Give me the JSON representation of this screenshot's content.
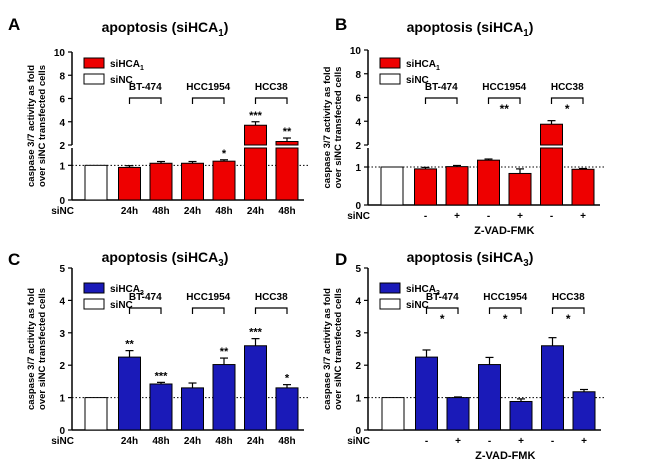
{
  "colors": {
    "red": "#ee0000",
    "blue": "#1a1ab8",
    "white": "#ffffff",
    "black": "#000000"
  },
  "chart_data": [
    {
      "type": "bar",
      "panel_letter": "A",
      "title": "apoptosis (siHCA",
      "title_sub": "1",
      "title_end": ")",
      "ylabel": [
        "caspase 3/7 activity as fold",
        "over siNC transfected cells"
      ],
      "broken_axis": true,
      "ylim_lower": [
        0,
        1.5
      ],
      "ylim_upper": [
        2,
        10
      ],
      "yticks_lower": [
        "0",
        "1"
      ],
      "yticks_upper": [
        "2",
        "4",
        "6",
        "8",
        "10"
      ],
      "legend": [
        {
          "label": "siHCA",
          "sub": "1",
          "color": "red"
        },
        {
          "label": "siNC",
          "sub": "",
          "color": "white"
        }
      ],
      "x_labels": [
        "siNC",
        "24h",
        "48h",
        "24h",
        "48h",
        "24h",
        "48h"
      ],
      "x_group_label": "",
      "bars": [
        {
          "value": 1.0,
          "error": 0,
          "color": "white",
          "star": ""
        },
        {
          "value": 0.94,
          "error": 0.05,
          "color": "red",
          "star": ""
        },
        {
          "value": 1.06,
          "error": 0.05,
          "color": "red",
          "star": ""
        },
        {
          "value": 1.06,
          "error": 0.05,
          "color": "red",
          "star": ""
        },
        {
          "value": 1.12,
          "error": 0.04,
          "color": "red",
          "star": "*"
        },
        {
          "value": 3.7,
          "error": 0.3,
          "color": "red",
          "star": "***"
        },
        {
          "value": 2.3,
          "error": 0.3,
          "color": "red",
          "star": "**"
        }
      ],
      "groups": [
        {
          "label": "BT-474",
          "bars": [
            1,
            2
          ],
          "star": ""
        },
        {
          "label": "HCC1954",
          "bars": [
            3,
            4
          ],
          "star": ""
        },
        {
          "label": "HCC38",
          "bars": [
            5,
            6
          ],
          "star": ""
        }
      ]
    },
    {
      "type": "bar",
      "panel_letter": "B",
      "title": "apoptosis (siHCA",
      "title_sub": "1",
      "title_end": ")",
      "ylabel": [
        "caspase 3/7 activity as fold",
        "over siNC transfected cells"
      ],
      "broken_axis": true,
      "ylim_lower": [
        0,
        1.5
      ],
      "ylim_upper": [
        2,
        10
      ],
      "yticks_lower": [
        "0",
        "1"
      ],
      "yticks_upper": [
        "2",
        "4",
        "6",
        "8",
        "10"
      ],
      "legend": [
        {
          "label": "siHCA",
          "sub": "1",
          "color": "red"
        },
        {
          "label": "siNC",
          "sub": "",
          "color": "white"
        }
      ],
      "x_labels": [
        "siNC",
        "-",
        "+",
        "-",
        "+",
        "-",
        "+"
      ],
      "x_group_label": "Z-VAD-FMK",
      "bars": [
        {
          "value": 1.0,
          "error": 0,
          "color": "white",
          "star": ""
        },
        {
          "value": 0.95,
          "error": 0.04,
          "color": "red",
          "star": ""
        },
        {
          "value": 1.01,
          "error": 0.03,
          "color": "red",
          "star": ""
        },
        {
          "value": 1.18,
          "error": 0.03,
          "color": "red",
          "star": ""
        },
        {
          "value": 0.83,
          "error": 0.12,
          "color": "red",
          "star": ""
        },
        {
          "value": 3.75,
          "error": 0.3,
          "color": "red",
          "star": ""
        },
        {
          "value": 0.94,
          "error": 0.02,
          "color": "red",
          "star": ""
        }
      ],
      "groups": [
        {
          "label": "BT-474",
          "bars": [
            1,
            2
          ],
          "star": ""
        },
        {
          "label": "HCC1954",
          "bars": [
            3,
            4
          ],
          "star": "**"
        },
        {
          "label": "HCC38",
          "bars": [
            5,
            6
          ],
          "star": "*"
        }
      ]
    },
    {
      "type": "bar",
      "panel_letter": "C",
      "title": "apoptosis (siHCA",
      "title_sub": "3",
      "title_end": ")",
      "ylabel": [
        "caspase 3/7 activity as fold",
        "over siNC transfected cells"
      ],
      "broken_axis": false,
      "ylim": [
        0,
        5
      ],
      "yticks": [
        "0",
        "1",
        "2",
        "3",
        "4",
        "5"
      ],
      "legend": [
        {
          "label": "siHCA",
          "sub": "3",
          "color": "blue"
        },
        {
          "label": "siNC",
          "sub": "",
          "color": "white"
        }
      ],
      "x_labels": [
        "siNC",
        "24h",
        "48h",
        "24h",
        "48h",
        "24h",
        "48h"
      ],
      "x_group_label": "",
      "bars": [
        {
          "value": 1.0,
          "error": 0,
          "color": "white",
          "star": ""
        },
        {
          "value": 2.25,
          "error": 0.2,
          "color": "blue",
          "star": "**"
        },
        {
          "value": 1.42,
          "error": 0.05,
          "color": "blue",
          "star": "***"
        },
        {
          "value": 1.3,
          "error": 0.15,
          "color": "blue",
          "star": ""
        },
        {
          "value": 2.02,
          "error": 0.2,
          "color": "blue",
          "star": "**"
        },
        {
          "value": 2.6,
          "error": 0.22,
          "color": "blue",
          "star": "***"
        },
        {
          "value": 1.3,
          "error": 0.1,
          "color": "blue",
          "star": "*"
        }
      ],
      "groups": [
        {
          "label": "BT-474",
          "bars": [
            1,
            2
          ],
          "star": ""
        },
        {
          "label": "HCC1954",
          "bars": [
            3,
            4
          ],
          "star": ""
        },
        {
          "label": "HCC38",
          "bars": [
            5,
            6
          ],
          "star": ""
        }
      ]
    },
    {
      "type": "bar",
      "panel_letter": "D",
      "title": "apoptosis (siHCA",
      "title_sub": "3",
      "title_end": ")",
      "ylabel": [
        "caspase 3/7 activity as fold",
        "over siNC transfected cells"
      ],
      "broken_axis": false,
      "ylim": [
        0,
        5
      ],
      "yticks": [
        "0",
        "1",
        "2",
        "3",
        "4",
        "5"
      ],
      "legend": [
        {
          "label": "siHCA",
          "sub": "3",
          "color": "blue"
        },
        {
          "label": "siNC",
          "sub": "",
          "color": "white"
        }
      ],
      "x_labels": [
        "siNC",
        "-",
        "+",
        "-",
        "+",
        "-",
        "+"
      ],
      "x_group_label": "Z-VAD-FMK",
      "bars": [
        {
          "value": 1.0,
          "error": 0,
          "color": "white",
          "star": ""
        },
        {
          "value": 2.25,
          "error": 0.22,
          "color": "blue",
          "star": ""
        },
        {
          "value": 1.0,
          "error": 0.02,
          "color": "blue",
          "star": ""
        },
        {
          "value": 2.02,
          "error": 0.22,
          "color": "blue",
          "star": ""
        },
        {
          "value": 0.88,
          "error": 0.08,
          "color": "blue",
          "star": ""
        },
        {
          "value": 2.6,
          "error": 0.25,
          "color": "blue",
          "star": ""
        },
        {
          "value": 1.18,
          "error": 0.07,
          "color": "blue",
          "star": ""
        }
      ],
      "groups": [
        {
          "label": "BT-474",
          "bars": [
            1,
            2
          ],
          "star": "*"
        },
        {
          "label": "HCC1954",
          "bars": [
            3,
            4
          ],
          "star": "*"
        },
        {
          "label": "HCC38",
          "bars": [
            5,
            6
          ],
          "star": "*"
        }
      ]
    }
  ]
}
